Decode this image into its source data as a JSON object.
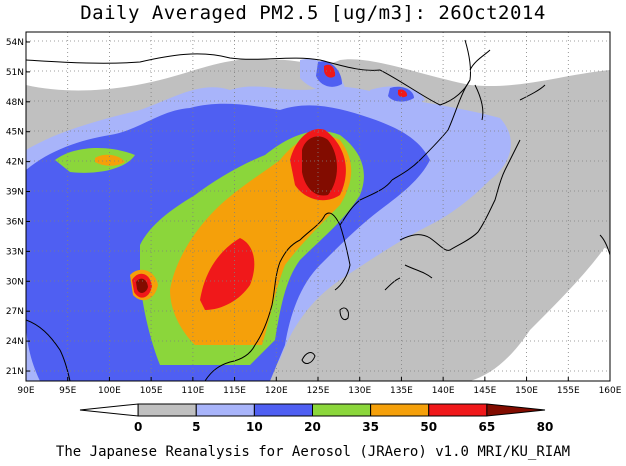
{
  "title": "Daily Averaged PM2.5 [ug/m3]: 26Oct2014",
  "credit": "The Japanese Reanalysis for Aerosol (JRAero) v1.0 MRI/KU_RIAM",
  "map": {
    "lon_range": [
      90,
      160
    ],
    "lat_range": [
      20,
      55
    ],
    "lon_ticks": [
      "90E",
      "95E",
      "100E",
      "105E",
      "110E",
      "115E",
      "120E",
      "125E",
      "130E",
      "135E",
      "140E",
      "145E",
      "150E",
      "155E",
      "160E"
    ],
    "lat_ticks": [
      "21N",
      "24N",
      "27N",
      "30N",
      "33N",
      "36N",
      "39N",
      "42N",
      "45N",
      "48N",
      "51N",
      "54N"
    ],
    "gridlines": true
  },
  "legend": {
    "levels": [
      "0",
      "5",
      "10",
      "20",
      "35",
      "50",
      "65",
      "80"
    ],
    "colors": [
      "#ffffff",
      "#c0c0c0",
      "#a8b4fa",
      "#4f5ff2",
      "#8bd63b",
      "#f5a00a",
      "#f0181a",
      "#820c00"
    ],
    "placement": "bottom"
  }
}
